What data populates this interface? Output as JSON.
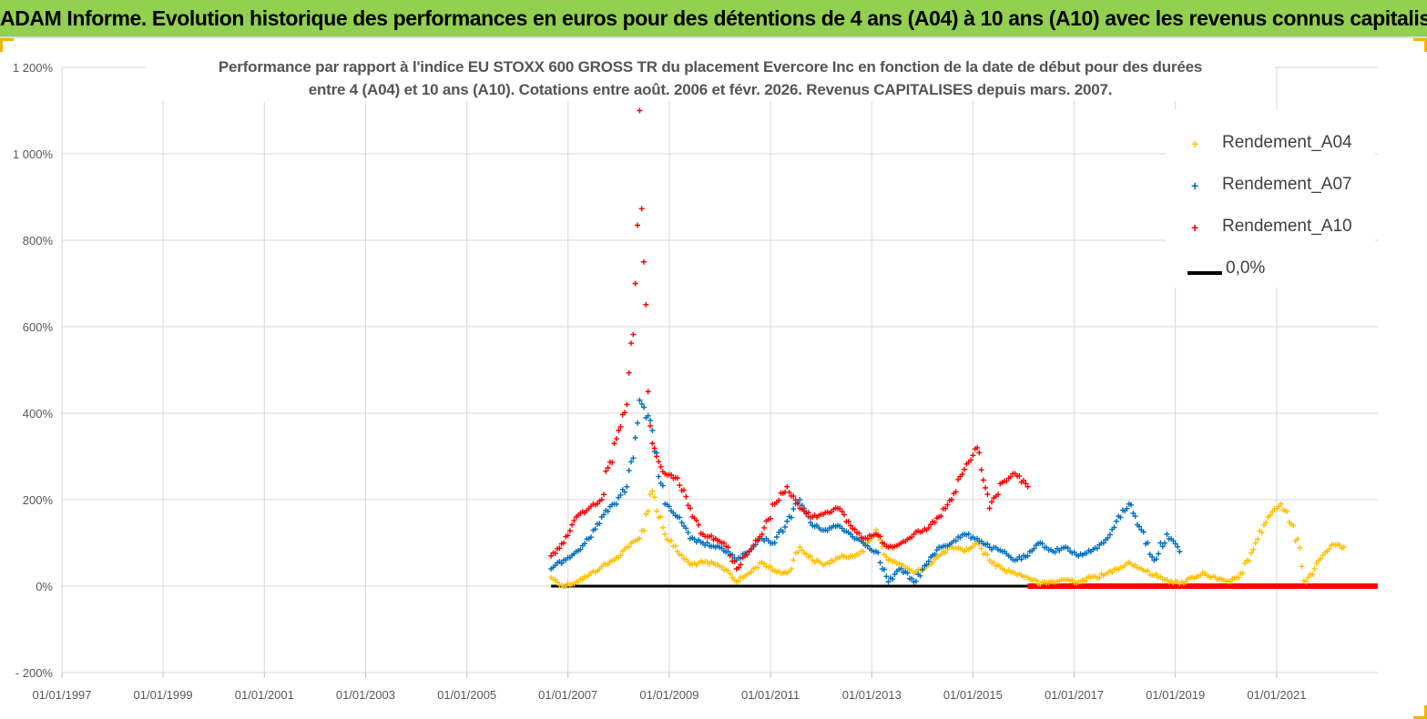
{
  "header": {
    "title": "ADAM Informe. Evolution historique des performances en euros pour des détentions de 4 ans (A04) à 10 ans (A10) avec les revenus connus capitalisés"
  },
  "colors": {
    "banner": "#92d050",
    "corner": "#f2b400",
    "A04": "#ffc000",
    "A07": "#0070c0",
    "A10": "#ff0000",
    "zero": "#000000",
    "grid": "#d9d9d9"
  },
  "chart_data": {
    "type": "scatter",
    "title_line1": "Performance par rapport à l'indice EU STOXX 600 GROSS TR  du placement Evercore Inc en fonction de la date de début pour des durées",
    "title_line2": "entre 4 (A04) et 10 ans (A10). Cotations entre août. 2006 et févr. 2026. Revenus CAPITALISES depuis mars. 2007.",
    "xlabel": "",
    "ylabel": "",
    "x_range": [
      "01/01/1997",
      "01/01/2023"
    ],
    "y_range": [
      -200,
      1200
    ],
    "x_ticks": [
      "01/01/1997",
      "01/01/1999",
      "01/01/2001",
      "01/01/2003",
      "01/01/2005",
      "01/01/2007",
      "01/01/2009",
      "01/01/2011",
      "01/01/2013",
      "01/01/2015",
      "01/01/2017",
      "01/01/2019",
      "01/01/2021"
    ],
    "y_ticks": [
      "- 200%",
      "0%",
      "200%",
      "400%",
      "600%",
      "800%",
      "1 000%",
      "1 200%"
    ],
    "y_tick_values": [
      -200,
      0,
      200,
      400,
      600,
      800,
      1000,
      1200
    ],
    "grid": "horizontal",
    "legend_position": "top-right",
    "legend": [
      "Rendement_A04",
      "Rendement_A07",
      "Rendement_A10",
      "0,0%"
    ],
    "series": [
      {
        "name": "Rendement_A04",
        "marker": "+",
        "color": "#ffc000",
        "x": [
          "2006-09-01",
          "2006-12-01",
          "2007-03-01",
          "2007-06-01",
          "2007-09-01",
          "2007-12-01",
          "2008-03-01",
          "2008-06-01",
          "2008-09-01",
          "2008-12-01",
          "2009-03-01",
          "2009-06-01",
          "2009-09-01",
          "2009-12-01",
          "2010-03-01",
          "2010-05-01",
          "2010-08-01",
          "2010-11-01",
          "2011-02-01",
          "2011-05-01",
          "2011-08-01",
          "2011-11-01",
          "2012-02-01",
          "2012-05-01",
          "2012-08-01",
          "2012-11-01",
          "2013-02-01",
          "2013-05-01",
          "2013-08-01",
          "2013-11-01",
          "2014-02-01",
          "2014-05-01",
          "2014-08-01",
          "2014-11-01",
          "2015-02-01",
          "2015-05-01",
          "2015-08-01",
          "2015-11-01",
          "2016-02-01",
          "2016-05-01",
          "2016-08-01",
          "2016-11-01",
          "2017-02-01",
          "2017-05-01",
          "2017-08-01",
          "2017-11-01",
          "2018-02-01",
          "2018-05-01",
          "2018-08-01",
          "2018-11-01",
          "2019-02-01",
          "2019-05-01",
          "2019-08-01",
          "2019-11-01",
          "2020-02-01",
          "2020-05-01",
          "2020-08-01",
          "2020-11-01",
          "2021-02-01",
          "2021-05-01",
          "2021-08-01",
          "2021-11-01",
          "2022-02-01",
          "2022-05-01"
        ],
        "values": [
          20,
          0,
          10,
          25,
          45,
          60,
          90,
          110,
          220,
          120,
          80,
          50,
          55,
          50,
          35,
          10,
          30,
          55,
          35,
          30,
          90,
          60,
          50,
          65,
          70,
          80,
          130,
          60,
          50,
          30,
          45,
          70,
          90,
          80,
          100,
          60,
          40,
          30,
          20,
          5,
          10,
          15,
          10,
          20,
          25,
          40,
          55,
          40,
          25,
          15,
          5,
          20,
          30,
          15,
          10,
          30,
          100,
          160,
          190,
          140,
          10,
          60,
          95,
          90
        ]
      },
      {
        "name": "Rendement_A07",
        "marker": "+",
        "color": "#0070c0",
        "x": [
          "2006-09-01",
          "2006-12-01",
          "2007-03-01",
          "2007-06-01",
          "2007-09-01",
          "2007-12-01",
          "2008-03-01",
          "2008-06-01",
          "2008-09-01",
          "2008-12-01",
          "2009-03-01",
          "2009-06-01",
          "2009-09-01",
          "2009-12-01",
          "2010-03-01",
          "2010-05-01",
          "2010-08-01",
          "2010-11-01",
          "2011-02-01",
          "2011-05-01",
          "2011-08-01",
          "2011-11-01",
          "2012-02-01",
          "2012-05-01",
          "2012-08-01",
          "2012-11-01",
          "2013-02-01",
          "2013-05-01",
          "2013-08-01",
          "2013-11-01",
          "2014-02-01",
          "2014-05-01",
          "2014-08-01",
          "2014-11-01",
          "2015-02-01",
          "2015-05-01",
          "2015-08-01",
          "2015-11-01",
          "2016-02-01",
          "2016-05-01",
          "2016-08-01",
          "2016-11-01",
          "2017-02-01",
          "2017-05-01",
          "2017-08-01",
          "2017-11-01",
          "2018-02-01",
          "2018-05-01",
          "2018-08-01",
          "2018-11-01",
          "2019-02-01"
        ],
        "values": [
          40,
          60,
          80,
          110,
          160,
          190,
          230,
          430,
          360,
          190,
          160,
          110,
          100,
          90,
          80,
          60,
          80,
          110,
          100,
          150,
          200,
          140,
          130,
          140,
          120,
          100,
          80,
          10,
          40,
          10,
          50,
          90,
          100,
          120,
          110,
          90,
          80,
          60,
          70,
          100,
          80,
          90,
          70,
          80,
          100,
          150,
          190,
          130,
          60,
          120,
          80
        ]
      },
      {
        "name": "Rendement_A10",
        "marker": "+",
        "color": "#ff0000",
        "x": [
          "2006-09-01",
          "2006-12-01",
          "2007-03-01",
          "2007-06-01",
          "2007-09-01",
          "2007-12-01",
          "2008-01-01",
          "2008-03-01",
          "2008-05-01",
          "2008-06-01",
          "2008-07-01",
          "2008-08-01",
          "2008-09-01",
          "2008-10-01",
          "2008-12-01",
          "2009-03-01",
          "2009-06-01",
          "2009-09-01",
          "2009-12-01",
          "2010-03-01",
          "2010-05-01",
          "2010-08-01",
          "2010-11-01",
          "2011-02-01",
          "2011-05-01",
          "2011-08-01",
          "2011-11-01",
          "2012-02-01",
          "2012-05-01",
          "2012-08-01",
          "2012-11-01",
          "2013-02-01",
          "2013-05-01",
          "2013-08-01",
          "2013-11-01",
          "2014-02-01",
          "2014-05-01",
          "2014-08-01",
          "2014-11-01",
          "2015-02-01",
          "2015-05-01",
          "2015-08-01",
          "2015-11-01",
          "2016-02-01"
        ],
        "values": [
          70,
          100,
          160,
          180,
          200,
          330,
          360,
          420,
          700,
          1100,
          750,
          450,
          330,
          300,
          260,
          250,
          180,
          120,
          110,
          90,
          40,
          80,
          120,
          190,
          230,
          180,
          160,
          170,
          180,
          140,
          110,
          120,
          90,
          100,
          120,
          130,
          160,
          200,
          270,
          320,
          180,
          240,
          260,
          230
        ]
      },
      {
        "name": "0,0%",
        "marker": "line",
        "color": "#000000",
        "x": [
          "2006-09-01",
          "2016-02-01"
        ],
        "values": [
          0,
          0
        ]
      },
      {
        "name": "Rendement_A10",
        "marker": "line",
        "color": "#ff0000",
        "x": [
          "2016-02-01",
          "2022-12-31"
        ],
        "values": [
          0,
          0
        ]
      }
    ]
  }
}
